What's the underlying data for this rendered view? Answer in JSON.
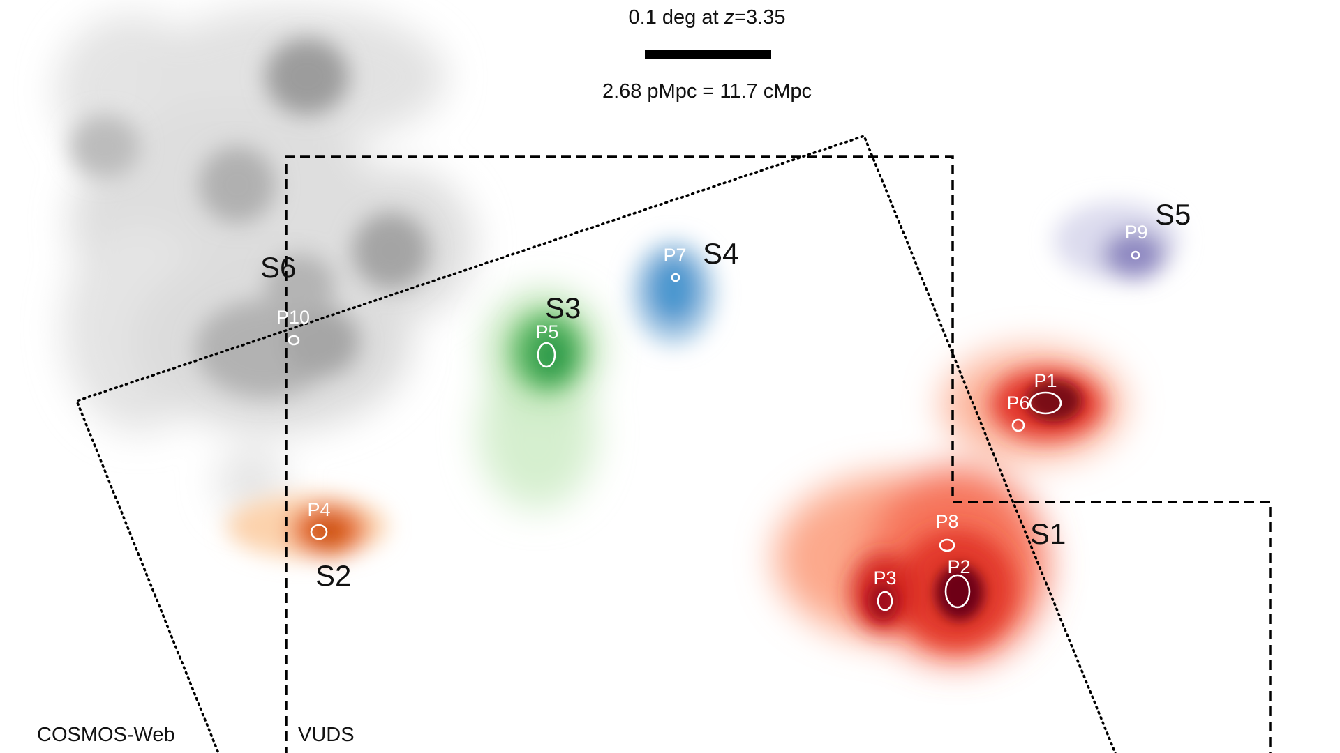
{
  "scale_bar": {
    "angle_label": "0.1 deg at ",
    "z_symbol": "z",
    "z_value": "=3.35",
    "distance_label": "2.68 pMpc = 11.7 cMpc"
  },
  "survey_labels": {
    "cosmos": "COSMOS-Web",
    "vuds": "VUDS"
  },
  "structures": [
    {
      "label": "S1",
      "color": "#d7301f"
    },
    {
      "label": "S2",
      "color": "#e6550d"
    },
    {
      "label": "S3",
      "color": "#31a354"
    },
    {
      "label": "S4",
      "color": "#3182bd"
    },
    {
      "label": "S5",
      "color": "#756bb1"
    },
    {
      "label": "S6",
      "color": "#636363"
    }
  ],
  "peaks": [
    "P1",
    "P2",
    "P3",
    "P4",
    "P5",
    "P6",
    "P7",
    "P8",
    "P9",
    "P10"
  ]
}
